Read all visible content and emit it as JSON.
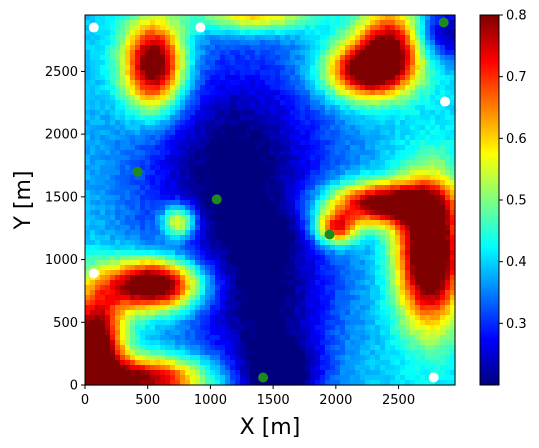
{
  "chart_data": {
    "type": "heatmap",
    "title": "",
    "xlabel": "X [m]",
    "ylabel": "Y [m]",
    "xlim": [
      0,
      2950
    ],
    "ylim": [
      0,
      2950
    ],
    "x_ticks": [
      0,
      500,
      1000,
      1500,
      2000,
      2500
    ],
    "y_ticks": [
      0,
      500,
      1000,
      1500,
      2000,
      2500
    ],
    "colorbar": {
      "colormap": "jet",
      "range": [
        0.2,
        0.8
      ],
      "ticks": [
        "0.3",
        "0.4",
        "0.5",
        "0.6",
        "0.7",
        "0.8"
      ]
    },
    "grid": false,
    "colormap_colors": [
      "#00007f",
      "#0000ff",
      "#007fff",
      "#00ffff",
      "#7fff7f",
      "#ffff00",
      "#ff7f00",
      "#ff0000",
      "#7f0000"
    ],
    "field": {
      "background": 0.4,
      "features": [
        {
          "x": 1200,
          "y": 1700,
          "sx": 700,
          "sy": 900,
          "amp": -0.22
        },
        {
          "x": 1450,
          "y": 600,
          "sx": 500,
          "sy": 500,
          "amp": -0.15
        },
        {
          "x": 1550,
          "y": 80,
          "sx": 300,
          "sy": 250,
          "amp": -0.2
        },
        {
          "x": 2850,
          "y": 2800,
          "sx": 250,
          "sy": 200,
          "amp": -0.2
        },
        {
          "x": 550,
          "y": 2550,
          "sx": 220,
          "sy": 320,
          "amp": 0.5
        },
        {
          "x": 1350,
          "y": 2950,
          "sx": 400,
          "sy": 120,
          "amp": 0.25
        },
        {
          "x": 2250,
          "y": 2500,
          "sx": 300,
          "sy": 200,
          "amp": 0.45
        },
        {
          "x": 2450,
          "y": 2750,
          "sx": 250,
          "sy": 250,
          "amp": 0.35
        },
        {
          "x": 2750,
          "y": 1050,
          "sx": 230,
          "sy": 500,
          "amp": 0.55
        },
        {
          "x": 2350,
          "y": 1450,
          "sx": 380,
          "sy": 150,
          "amp": 0.45
        },
        {
          "x": 2000,
          "y": 1250,
          "sx": 150,
          "sy": 120,
          "amp": 0.35
        },
        {
          "x": 550,
          "y": 800,
          "sx": 330,
          "sy": 180,
          "amp": 0.55
        },
        {
          "x": 80,
          "y": 300,
          "sx": 200,
          "sy": 400,
          "amp": 0.5
        },
        {
          "x": 500,
          "y": 50,
          "sx": 400,
          "sy": 150,
          "amp": 0.4
        },
        {
          "x": 750,
          "y": 1300,
          "sx": 120,
          "sy": 120,
          "amp": 0.3
        },
        {
          "x": 1500,
          "y": 1200,
          "sx": 200,
          "sy": 200,
          "amp": -0.05
        }
      ]
    },
    "markers": {
      "white": [
        {
          "x": 70,
          "y": 2850
        },
        {
          "x": 920,
          "y": 2850
        },
        {
          "x": 2870,
          "y": 2260
        },
        {
          "x": 70,
          "y": 890
        },
        {
          "x": 2780,
          "y": 60
        }
      ],
      "green": [
        {
          "x": 2860,
          "y": 2890
        },
        {
          "x": 420,
          "y": 1700
        },
        {
          "x": 1050,
          "y": 1480
        },
        {
          "x": 1950,
          "y": 1200
        },
        {
          "x": 1420,
          "y": 60
        }
      ],
      "colors": {
        "white": "#ffffff",
        "green": "#1e8a1e"
      }
    }
  }
}
